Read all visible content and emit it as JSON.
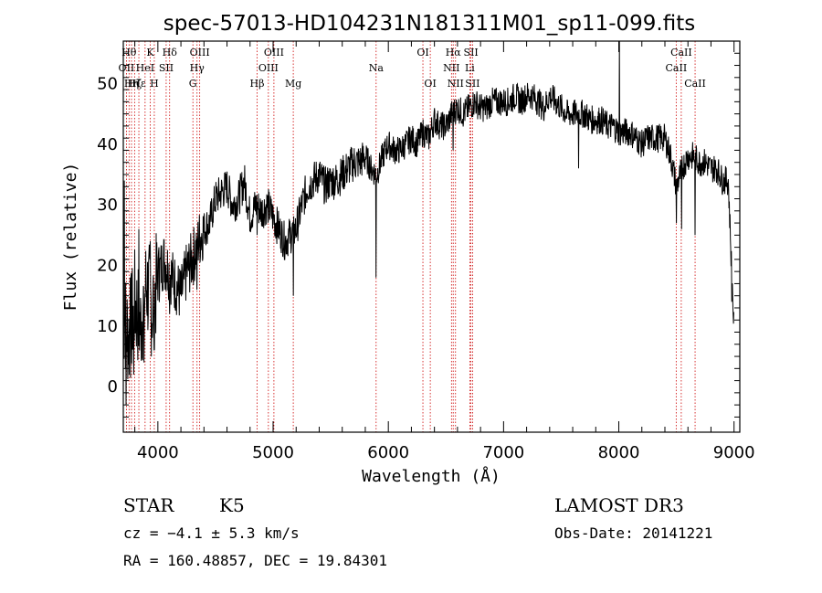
{
  "chart_data": {
    "type": "line",
    "title": "spec-57013-HD104231N181311M01_sp11-099.fits",
    "xlabel": "Wavelength (Å)",
    "ylabel": "Flux (relative)",
    "xlim": [
      3700,
      9050
    ],
    "ylim": [
      -7.5,
      57
    ],
    "xticks": [
      4000,
      5000,
      6000,
      7000,
      8000,
      9000
    ],
    "yticks": [
      0,
      10,
      20,
      30,
      40,
      50
    ],
    "grid": false,
    "series": [
      {
        "x": [
          3700,
          3750,
          3800,
          3850,
          3900,
          3950,
          4000,
          4050,
          4100,
          4150,
          4200,
          4250,
          4300,
          4350,
          4400,
          4450,
          4500,
          4550,
          4600,
          4650,
          4700,
          4750,
          4800,
          4850,
          4900,
          4950,
          5000,
          5050,
          5100,
          5150,
          5200,
          5250,
          5300,
          5350,
          5400,
          5450,
          5500,
          5550,
          5600,
          5650,
          5700,
          5750,
          5800,
          5850,
          5900,
          5950,
          6000,
          6050,
          6100,
          6150,
          6200,
          6250,
          6300,
          6350,
          6400,
          6450,
          6500,
          6550,
          6600,
          6650,
          6700,
          6750,
          6800,
          6850,
          6900,
          6950,
          7000,
          7050,
          7100,
          7150,
          7200,
          7250,
          7300,
          7350,
          7400,
          7450,
          7500,
          7550,
          7600,
          7650,
          7700,
          7750,
          7800,
          7850,
          7900,
          7950,
          8000,
          8050,
          8100,
          8150,
          8200,
          8250,
          8300,
          8350,
          8400,
          8450,
          8500,
          8550,
          8600,
          8650,
          8700,
          8750,
          8800,
          8850,
          8900,
          8950,
          9000
        ],
        "y": [
          12,
          8,
          14,
          10,
          17,
          13,
          18,
          21,
          19,
          17,
          15,
          19,
          21,
          24,
          26,
          27,
          31,
          32,
          33,
          30,
          31,
          34,
          28,
          30,
          29,
          30,
          28,
          26,
          24,
          25,
          26,
          30,
          33,
          34,
          35,
          33,
          34,
          34,
          35,
          36,
          37,
          37,
          38,
          36,
          35,
          38,
          40,
          39,
          39,
          40,
          41,
          40,
          42,
          41,
          44,
          43,
          43,
          45,
          46,
          45,
          46,
          47,
          46,
          46,
          47,
          47,
          47,
          47,
          48,
          47,
          48,
          48,
          47,
          46,
          48,
          47,
          46,
          45,
          45,
          45,
          45,
          44,
          44,
          44,
          43,
          43,
          42,
          42,
          42,
          41,
          40,
          41,
          41,
          41,
          41,
          38,
          33,
          36,
          38,
          38,
          37,
          37,
          36,
          36,
          34,
          34,
          9
        ]
      }
    ],
    "spikes": [
      {
        "x": 3710,
        "y": 34
      },
      {
        "x": 3725,
        "y": -3
      },
      {
        "x": 3760,
        "y": 18
      },
      {
        "x": 3790,
        "y": 2
      },
      {
        "x": 3835,
        "y": 26
      },
      {
        "x": 3880,
        "y": 4
      },
      {
        "x": 3935,
        "y": 24
      },
      {
        "x": 3968,
        "y": 6
      },
      {
        "x": 4010,
        "y": 23
      },
      {
        "x": 4102,
        "y": 12
      },
      {
        "x": 4340,
        "y": 16
      },
      {
        "x": 4861,
        "y": 25
      },
      {
        "x": 5175,
        "y": 15
      },
      {
        "x": 5894,
        "y": 18
      },
      {
        "x": 6563,
        "y": 39
      },
      {
        "x": 7650,
        "y": 36
      },
      {
        "x": 8005,
        "y": 57
      },
      {
        "x": 8500,
        "y": 27
      },
      {
        "x": 8545,
        "y": 26
      },
      {
        "x": 8662,
        "y": 25
      },
      {
        "x": 8980,
        "y": 14
      },
      {
        "x": 9000,
        "y": 0
      }
    ],
    "lines": [
      {
        "x": 3727,
        "labels": [
          "OII"
        ],
        "row": 2
      },
      {
        "x": 3750,
        "labels": [
          "Hθ"
        ],
        "row": 1
      },
      {
        "x": 3771,
        "labels": [
          "Hη"
        ],
        "row": 3
      },
      {
        "x": 3798,
        "labels": [
          "Hζ"
        ],
        "row": 3
      },
      {
        "x": 3835,
        "labels": [
          "Hε"
        ],
        "row": 3
      },
      {
        "x": 3889,
        "labels": [
          "HeI"
        ],
        "row": 2
      },
      {
        "x": 3934,
        "labels": [
          "K"
        ],
        "row": 1
      },
      {
        "x": 3969,
        "labels": [
          "H"
        ],
        "row": 3
      },
      {
        "x": 4072,
        "labels": [
          "SII"
        ],
        "row": 2
      },
      {
        "x": 4102,
        "labels": [
          "Hδ"
        ],
        "row": 1
      },
      {
        "x": 4304,
        "labels": [
          "G"
        ],
        "row": 3
      },
      {
        "x": 4340,
        "labels": [
          "Hγ"
        ],
        "row": 2
      },
      {
        "x": 4363,
        "labels": [
          "OIII"
        ],
        "row": 1
      },
      {
        "x": 4861,
        "labels": [
          "Hβ"
        ],
        "row": 3
      },
      {
        "x": 4959,
        "labels": [
          "OIII"
        ],
        "row": 2
      },
      {
        "x": 5007,
        "labels": [
          "OIII"
        ],
        "row": 1
      },
      {
        "x": 5175,
        "labels": [
          "Mg"
        ],
        "row": 3
      },
      {
        "x": 5894,
        "labels": [
          "Na"
        ],
        "row": 2
      },
      {
        "x": 6300,
        "labels": [
          "OI"
        ],
        "row": 1
      },
      {
        "x": 6364,
        "labels": [
          "OI"
        ],
        "row": 3
      },
      {
        "x": 6548,
        "labels": [
          "NII"
        ],
        "row": 2
      },
      {
        "x": 6563,
        "labels": [
          "Hα"
        ],
        "row": 1
      },
      {
        "x": 6583,
        "labels": [
          "NII"
        ],
        "row": 3
      },
      {
        "x": 6707,
        "labels": [
          "Li"
        ],
        "row": 2
      },
      {
        "x": 6717,
        "labels": [
          "SII"
        ],
        "row": 1
      },
      {
        "x": 6731,
        "labels": [
          "SII"
        ],
        "row": 3
      },
      {
        "x": 8498,
        "labels": [
          "CaII"
        ],
        "row": 2
      },
      {
        "x": 8542,
        "labels": [
          "CaII"
        ],
        "row": 1
      },
      {
        "x": 8662,
        "labels": [
          "CaII"
        ],
        "row": 3
      }
    ],
    "colors": {
      "spectrum": "#000000",
      "lines": "#cc0000",
      "axes": "#000000"
    }
  },
  "info": {
    "class": "STAR",
    "subclass": "K5",
    "survey": "LAMOST DR3",
    "cz": "cz = −4.1 ± 5.3 km/s",
    "obsdate": "Obs-Date: 20141221",
    "radec": "RA = 160.48857, DEC =  19.84301"
  }
}
